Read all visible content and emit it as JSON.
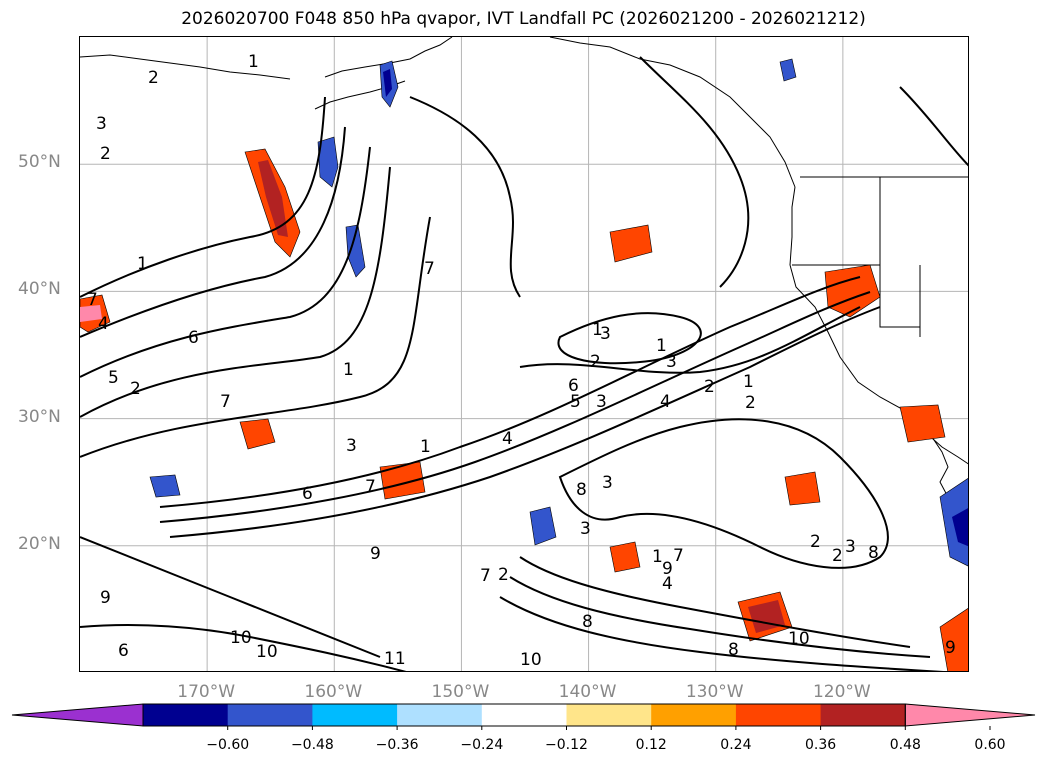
{
  "title": "2026020700 F048 850 hPa qvapor, IVT Landfall PC (2026021200 - 2026021212)",
  "lat_labels": [
    {
      "text": "50°N",
      "lat": 50
    },
    {
      "text": "40°N",
      "lat": 40
    },
    {
      "text": "30°N",
      "lat": 30
    },
    {
      "text": "20°N",
      "lat": 20
    }
  ],
  "lon_labels": [
    {
      "text": "170°W",
      "lon": -170
    },
    {
      "text": "160°W",
      "lon": -160
    },
    {
      "text": "150°W",
      "lon": -150
    },
    {
      "text": "140°W",
      "lon": -140
    },
    {
      "text": "130°W",
      "lon": -130
    },
    {
      "text": "120°W",
      "lon": -120
    }
  ],
  "colorbar": {
    "colors": [
      "#9b30d0",
      "#000090",
      "#3355cc",
      "#00bbff",
      "#aee0ff",
      "#ffffff",
      "#ffe58a",
      "#ffa000",
      "#ff4500",
      "#b22222",
      "#ff88aa"
    ],
    "ticks": [
      "−0.60",
      "−0.48",
      "−0.36",
      "−0.24",
      "−0.12",
      "0.12",
      "0.24",
      "0.36",
      "0.48",
      "0.60"
    ]
  },
  "contour_labels": [
    "2",
    "1",
    "3",
    "2",
    "1",
    "7",
    "4",
    "6",
    "5",
    "2",
    "7",
    "1",
    "3",
    "1",
    "6",
    "7",
    "4",
    "5",
    "3",
    "1",
    "3",
    "4",
    "2",
    "1",
    "2",
    "3",
    "8",
    "9",
    "7",
    "2",
    "9",
    "6",
    "10",
    "10",
    "11",
    "10",
    "8",
    "10",
    "9",
    "2",
    "2",
    "3",
    "8",
    "8",
    "3",
    "7",
    "9",
    "4",
    "2",
    "3",
    "1",
    "7",
    "1",
    "6"
  ]
}
